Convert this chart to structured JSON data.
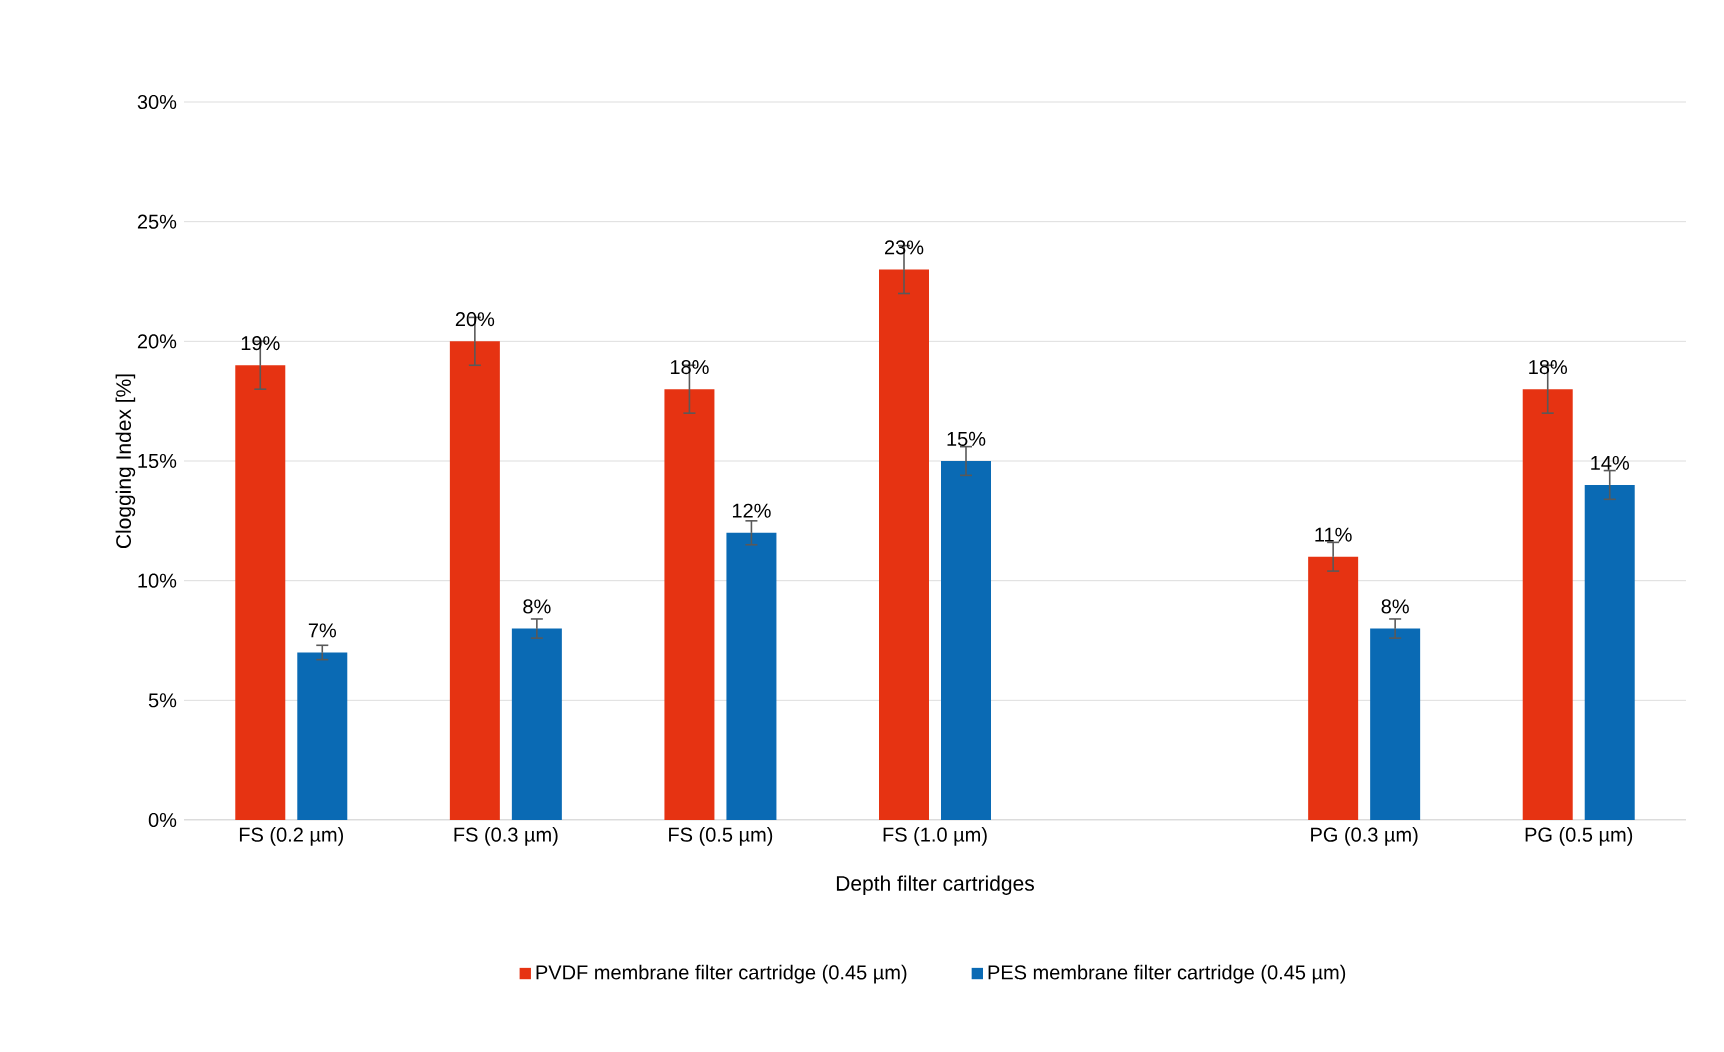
{
  "chart_data": {
    "type": "bar",
    "xlabel": "Depth filter cartridges",
    "ylabel": "Clogging Index [%]",
    "categories": [
      "FS (0.2 µm)",
      "FS (0.3 µm)",
      "FS (0.5 µm)",
      "FS (1.0 µm)",
      null,
      "PG (0.3 µm)",
      "PG (0.5 µm)"
    ],
    "series": [
      {
        "name": "PVDF membrane filter cartridge (0.45 µm)",
        "color": "#e63312",
        "values": [
          19,
          20,
          18,
          23,
          null,
          11,
          18
        ],
        "errors": [
          1,
          1,
          1,
          1,
          null,
          0.6,
          1
        ],
        "value_labels": [
          "19%",
          "20%",
          "18%",
          "23%",
          null,
          "11%",
          "18%"
        ]
      },
      {
        "name": "PES membrane filter cartridge (0.45 µm)",
        "color": "#0a6ab4",
        "values": [
          7,
          8,
          12,
          15,
          null,
          8,
          14
        ],
        "errors": [
          0.3,
          0.4,
          0.5,
          0.6,
          null,
          0.4,
          0.6
        ],
        "value_labels": [
          "7%",
          "8%",
          "12%",
          "15%",
          null,
          "8%",
          "14%"
        ]
      }
    ],
    "ylim": [
      0,
      30
    ],
    "yticks": [
      {
        "value": 0,
        "label": "0%"
      },
      {
        "value": 5,
        "label": "5%"
      },
      {
        "value": 10,
        "label": "10%"
      },
      {
        "value": 15,
        "label": "15%"
      },
      {
        "value": 20,
        "label": "20%"
      },
      {
        "value": 25,
        "label": "25%"
      },
      {
        "value": 30,
        "label": "30%"
      }
    ],
    "grid": "y",
    "legend": "bottom"
  }
}
